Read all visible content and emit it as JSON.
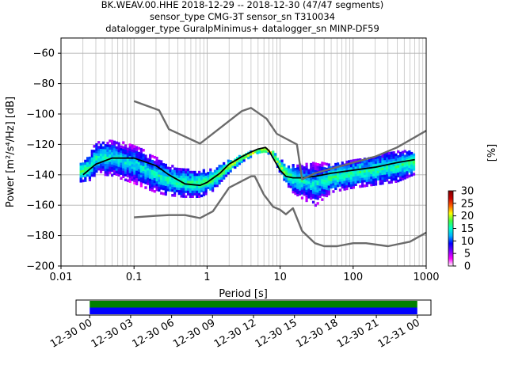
{
  "chart_data": [
    {
      "type": "heatmap",
      "title_lines": [
        "BK.WEAV.00.HHE   2018-12-29 -- 2018-12-30  (47/47 segments)",
        "sensor_type CMG-3T sensor_sn T310034",
        "datalogger_type GuralpMinimus+ datalogger_sn MINP-DF59"
      ],
      "xlabel": "Period [s]",
      "ylabel": "Power [m²/s⁴/Hz] [dB]",
      "x_scale": "log",
      "xlim": [
        0.01,
        1000
      ],
      "ylim": [
        -200,
        -50
      ],
      "x_ticks": [
        {
          "value": 0.01,
          "label": "0.01"
        },
        {
          "value": 0.1,
          "label": "0.1"
        },
        {
          "value": 1,
          "label": "1"
        },
        {
          "value": 10,
          "label": "10"
        },
        {
          "value": 100,
          "label": "100"
        },
        {
          "value": 1000,
          "label": "1000"
        }
      ],
      "y_ticks": [
        {
          "value": -60,
          "label": "−60"
        },
        {
          "value": -80,
          "label": "−80"
        },
        {
          "value": -100,
          "label": "−100"
        },
        {
          "value": -120,
          "label": "−120"
        },
        {
          "value": -140,
          "label": "−140"
        },
        {
          "value": -160,
          "label": "−160"
        },
        {
          "value": -180,
          "label": "−180"
        },
        {
          "value": -200,
          "label": "−200"
        }
      ],
      "grid": true,
      "colorbar": {
        "label": "[%]",
        "range": [
          0,
          30
        ],
        "ticks": [
          {
            "value": 0,
            "label": "0"
          },
          {
            "value": 5,
            "label": "5"
          },
          {
            "value": 10,
            "label": "10"
          },
          {
            "value": 15,
            "label": "15"
          },
          {
            "value": 20,
            "label": "20"
          },
          {
            "value": 25,
            "label": "25"
          },
          {
            "value": 30,
            "label": "30"
          }
        ],
        "colors": [
          "#ffffff",
          "#ff00ff",
          "#7a00ff",
          "#0000ff",
          "#00b0ff",
          "#00ffcc",
          "#40ff40",
          "#ffff00",
          "#ff6000",
          "#c80000",
          "#800000"
        ]
      },
      "density_band": {
        "period": [
          0.018,
          0.025,
          0.03,
          0.05,
          0.1,
          0.2,
          0.3,
          0.5,
          0.8,
          1.2,
          2,
          3,
          5,
          6.3,
          8,
          10,
          12,
          15,
          20,
          30,
          50,
          100,
          200,
          400,
          700
        ],
        "upper_db": [
          -133,
          -128,
          -119,
          -118,
          -121,
          -129,
          -134,
          -137,
          -138,
          -137,
          -131,
          -127,
          -124,
          -123,
          -125,
          -130,
          -134,
          -134,
          -133,
          -133,
          -133,
          -131,
          -128,
          -125,
          -125
        ],
        "lower_db": [
          -145,
          -144,
          -140,
          -141,
          -146,
          -152,
          -154,
          -155,
          -155,
          -151,
          -139,
          -132,
          -126,
          -125,
          -129,
          -139,
          -146,
          -152,
          -156,
          -161,
          -152,
          -149,
          -147,
          -145,
          -140
        ]
      },
      "series": [
        {
          "name": "",
          "color": "#000000",
          "x": [
            0.02,
            0.03,
            0.05,
            0.1,
            0.2,
            0.3,
            0.5,
            0.8,
            1.0,
            1.5,
            2,
            3,
            4,
            5,
            6.3,
            7,
            8,
            10,
            12,
            15,
            20,
            30,
            50,
            100,
            200,
            400,
            700
          ],
          "y": [
            -140,
            -133,
            -129,
            -129,
            -134,
            -140,
            -146,
            -147,
            -145,
            -139,
            -133,
            -128,
            -125,
            -123,
            -122,
            -124,
            -129,
            -137,
            -141,
            -142,
            -142,
            -141,
            -139,
            -137,
            -135,
            -132,
            -130
          ]
        },
        {
          "name": "",
          "color": "#6b6b6b",
          "x": [
            0.1,
            0.22,
            0.3,
            0.8,
            3,
            4,
            4.6,
            6.5,
            9,
            17,
            20,
            30,
            100,
            200,
            400,
            1000
          ],
          "y": [
            -91.5,
            -97.5,
            -110,
            -119.5,
            -98,
            -96,
            -98,
            -103,
            -113,
            -120,
            -143,
            -139,
            -132,
            -128,
            -122,
            -111
          ]
        },
        {
          "name": "",
          "color": "#6b6b6b",
          "x": [
            0.1,
            0.2,
            0.3,
            0.5,
            0.8,
            1.2,
            2,
            4,
            4.5,
            6,
            8,
            10,
            12,
            15,
            20,
            30,
            40,
            60,
            100,
            150,
            300,
            600,
            1000
          ],
          "y": [
            -168,
            -167,
            -166.5,
            -166.5,
            -168.5,
            -164,
            -148.5,
            -141,
            -141,
            -153,
            -161,
            -163,
            -166,
            -162,
            -177,
            -185,
            -187,
            -187,
            -185,
            -185,
            -187,
            -184,
            -178
          ]
        }
      ]
    },
    {
      "type": "timeline",
      "tick_labels": [
        "12-30 00",
        "12-30 03",
        "12-30 06",
        "12-30 09",
        "12-30 12",
        "12-30 15",
        "12-30 18",
        "12-30 21",
        "12-31 00"
      ],
      "time_range_hours": [
        -1.0,
        25.0
      ],
      "coverage_hours": [
        0.0,
        24.0
      ],
      "bars": [
        {
          "color": "#008000"
        },
        {
          "color": "#0000ff"
        }
      ]
    }
  ]
}
